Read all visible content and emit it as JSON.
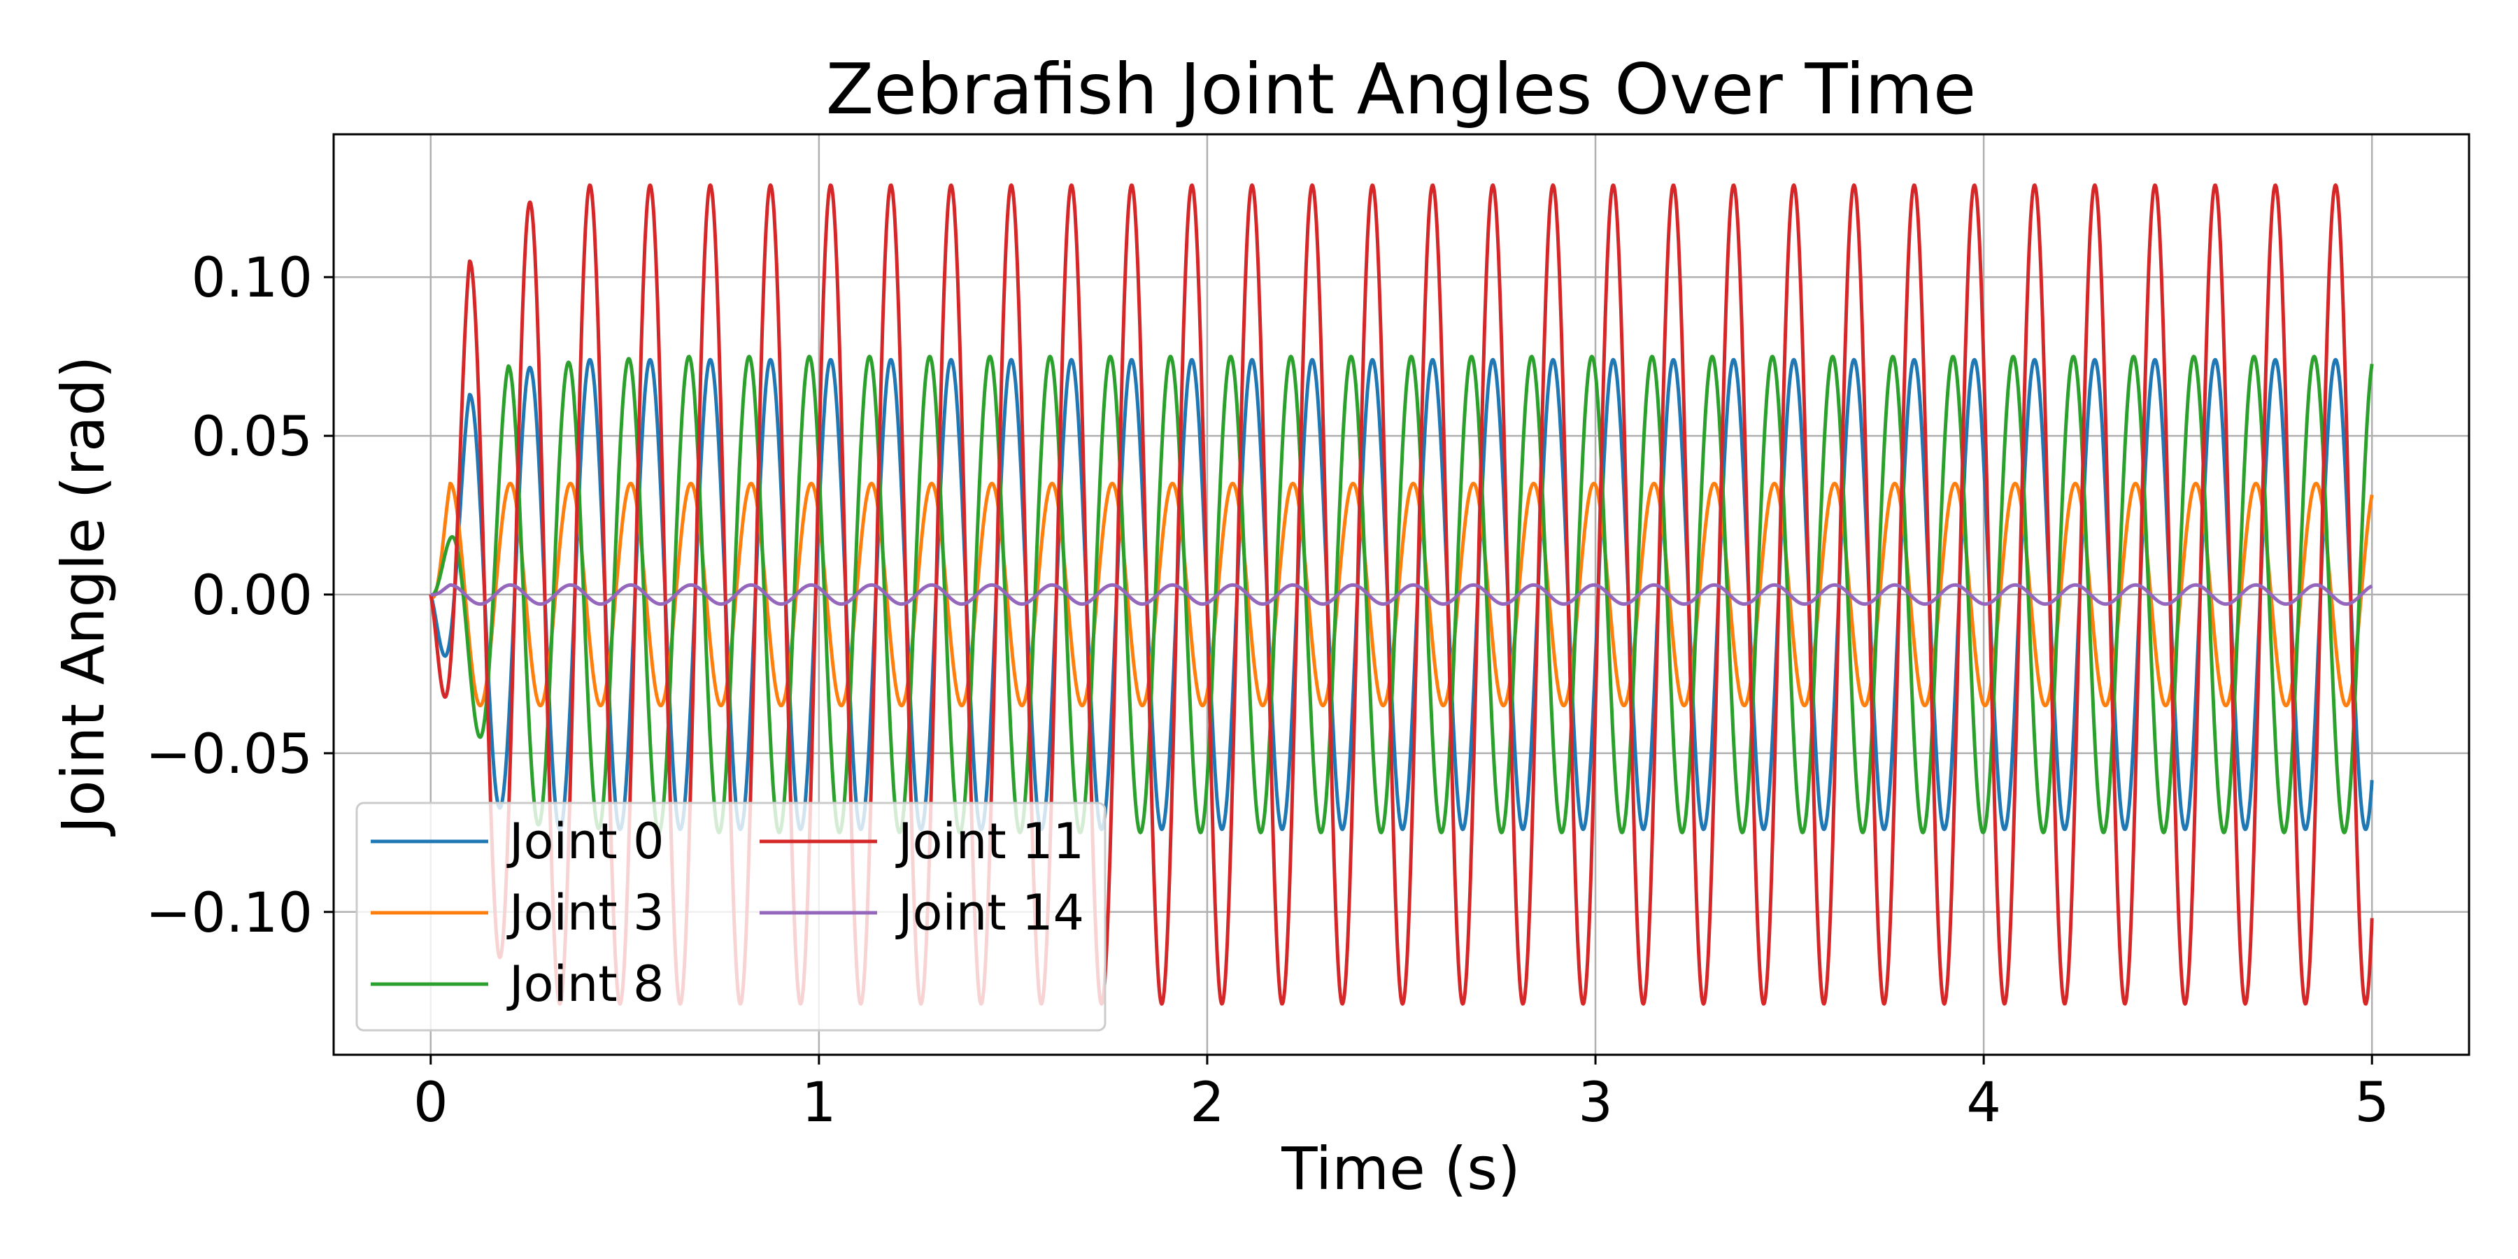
{
  "chart_data": {
    "type": "line",
    "title": "Zebrafish Joint Angles Over Time",
    "xlabel": "Time (s)",
    "ylabel": "Joint Angle (rad)",
    "xlim": [
      -0.25,
      5.25
    ],
    "ylim": [
      -0.145,
      0.145
    ],
    "x_ticks": [
      0,
      1,
      2,
      3,
      4,
      5
    ],
    "x_tick_labels": [
      "0",
      "1",
      "2",
      "3",
      "4",
      "5"
    ],
    "y_ticks": [
      -0.1,
      -0.05,
      0.0,
      0.05,
      0.1
    ],
    "y_tick_labels": [
      "−0.10",
      "−0.05",
      "0.00",
      "0.05",
      "0.10"
    ],
    "grid": true,
    "legend_position": "lower-left",
    "legend_columns": 2,
    "x_range": [
      0,
      5
    ],
    "oscillation_frequency_hz": 6.45,
    "series": [
      {
        "name": "Joint 0",
        "color": "#1f77b4",
        "amplitude": 0.074,
        "first_peak": {
          "x": 0.1,
          "y": 0.063
        }
      },
      {
        "name": "Joint 3",
        "color": "#ff7f0e",
        "amplitude": 0.035,
        "first_peak": {
          "x": 0.05,
          "y": 0.035
        }
      },
      {
        "name": "Joint 8",
        "color": "#2ca02c",
        "amplitude": 0.075,
        "first_peak": {
          "x": 0.2,
          "y": 0.072
        }
      },
      {
        "name": "Joint 11",
        "color": "#d62728",
        "amplitude": 0.129,
        "first_peak": {
          "x": 0.1,
          "y": 0.105
        }
      },
      {
        "name": "Joint 14",
        "color": "#9467bd",
        "amplitude": 0.003,
        "first_peak": {
          "x": 0.05,
          "y": 0.003
        }
      }
    ]
  }
}
